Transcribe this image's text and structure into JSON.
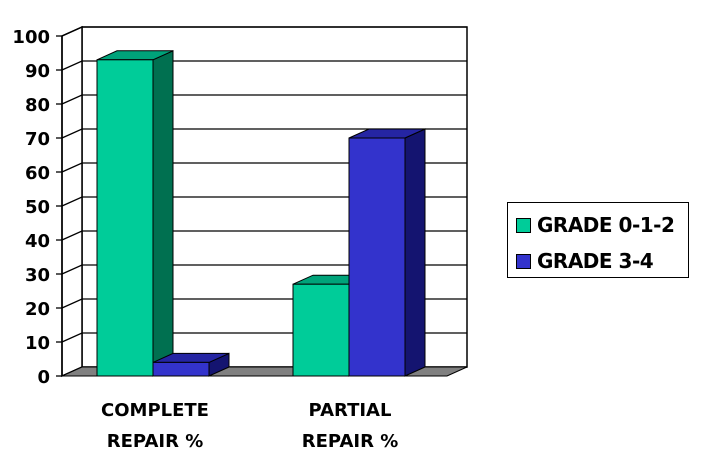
{
  "chart_data": {
    "type": "bar",
    "categories": [
      "COMPLETE|REPAIR %",
      "PARTIAL|REPAIR %"
    ],
    "series": [
      {
        "name": "GRADE 0-1-2",
        "values": [
          93,
          27
        ]
      },
      {
        "name": "GRADE 3-4",
        "values": [
          4,
          70
        ]
      }
    ],
    "ylim": [
      0,
      100
    ],
    "yticks": [
      0,
      10,
      20,
      30,
      40,
      50,
      60,
      70,
      80,
      90,
      100
    ],
    "grid": true,
    "legend": "right",
    "colors": {
      "grade012": {
        "front": "#00cc99",
        "side": "#007050",
        "top": "#00a37a"
      },
      "grade34": {
        "front": "#3333cc",
        "side": "#141470",
        "top": "#2525a3"
      },
      "floor": "#808080"
    }
  },
  "legend": {
    "items": [
      {
        "label": "GRADE 0-1-2",
        "color": "#00cc99"
      },
      {
        "label": "GRADE 3-4",
        "color": "#3333cc"
      }
    ]
  }
}
